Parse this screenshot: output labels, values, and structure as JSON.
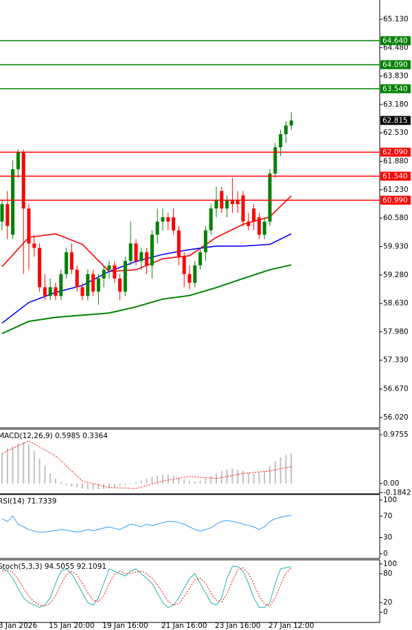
{
  "chart_data": [
    {
      "type": "candlestick",
      "categories": [
        null,
        null,
        "3 Jan 2026",
        null,
        null,
        null,
        null,
        null,
        null,
        null,
        null,
        null,
        null,
        "15 Jan 20:00",
        null,
        null,
        null,
        null,
        null,
        null,
        null,
        null,
        null,
        "19 Jan 16:00",
        null,
        null,
        null,
        null,
        null,
        null,
        null,
        null,
        null,
        null,
        "21 Jan 16:00",
        null,
        null,
        null,
        null,
        null,
        null,
        null,
        null,
        null,
        "23 Jan 16:00",
        null,
        null,
        null,
        null,
        null,
        null,
        null,
        null,
        null,
        "27 Jan 12:00"
      ],
      "open": [
        60.5,
        60.9,
        60.2,
        61.7,
        62.1,
        60.8,
        60.0,
        59.9,
        59.0,
        58.8,
        59.0,
        58.8,
        59.3,
        59.8,
        59.4,
        59.0,
        58.8,
        59.3,
        58.9,
        59.2,
        59.4,
        59.5,
        59.2,
        58.9,
        59.6,
        60.0,
        59.6,
        59.8,
        59.5,
        60.2,
        60.5,
        60.6,
        60.6,
        60.3,
        59.7,
        59.3,
        59.1,
        59.5,
        59.8,
        60.3,
        60.8,
        61.2,
        60.8,
        61.0,
        61.0,
        61.1,
        60.5,
        60.8,
        60.6,
        60.2,
        60.5,
        61.6,
        62.2,
        62.5,
        62.7
      ],
      "high": [
        61.0,
        61.2,
        61.9,
        62.15,
        62.15,
        60.9,
        60.2,
        60.0,
        59.3,
        59.2,
        59.1,
        59.4,
        59.9,
        60.0,
        59.5,
        59.1,
        59.4,
        59.4,
        59.3,
        59.5,
        59.6,
        59.6,
        59.3,
        59.7,
        60.5,
        60.1,
        59.9,
        59.9,
        60.3,
        60.8,
        60.8,
        60.7,
        60.8,
        60.4,
        59.8,
        59.5,
        59.6,
        59.9,
        60.4,
        60.9,
        61.3,
        61.3,
        61.1,
        61.5,
        61.2,
        61.2,
        60.7,
        60.9,
        60.7,
        60.6,
        61.7,
        62.3,
        62.6,
        62.8,
        63.0
      ],
      "low": [
        60.3,
        60.1,
        60.1,
        61.5,
        59.3,
        59.4,
        59.7,
        58.9,
        58.7,
        58.7,
        58.7,
        58.7,
        59.2,
        59.3,
        58.9,
        58.7,
        58.7,
        58.8,
        58.6,
        59.0,
        59.2,
        59.1,
        58.7,
        58.8,
        59.5,
        59.5,
        59.4,
        59.3,
        59.2,
        60.0,
        60.3,
        60.3,
        60.2,
        59.5,
        59.0,
        58.95,
        59.0,
        59.4,
        59.6,
        60.2,
        60.6,
        60.7,
        60.6,
        60.7,
        60.7,
        60.4,
        60.3,
        60.3,
        60.1,
        60.1,
        60.4,
        61.5,
        62.0,
        62.3,
        62.6
      ],
      "close": [
        60.9,
        60.4,
        61.7,
        62.1,
        60.8,
        60.0,
        59.9,
        59.0,
        58.8,
        59.0,
        58.8,
        59.3,
        59.8,
        59.4,
        59.0,
        58.8,
        59.3,
        58.9,
        59.2,
        59.4,
        59.5,
        59.2,
        58.9,
        59.6,
        60.0,
        59.6,
        59.8,
        59.5,
        60.2,
        60.5,
        60.6,
        60.5,
        60.3,
        59.7,
        59.3,
        59.1,
        59.5,
        59.8,
        60.3,
        60.8,
        61.0,
        60.8,
        61.0,
        60.9,
        60.9,
        60.5,
        60.4,
        60.5,
        60.2,
        60.5,
        61.6,
        62.2,
        62.5,
        62.7,
        62.815
      ],
      "up_color": "#008000",
      "down_color": "#ff0000",
      "moving_averages": [
        {
          "color": "#ff0000",
          "x": [
            0,
            5,
            10,
            15,
            20,
            25,
            30,
            35,
            40,
            45,
            50,
            54
          ],
          "values": [
            59.47,
            60.14,
            60.22,
            59.98,
            59.36,
            59.4,
            59.65,
            59.72,
            60.14,
            60.44,
            60.61,
            61.09
          ]
        },
        {
          "color": "#0000ff",
          "x": [
            0,
            5,
            10,
            15,
            20,
            25,
            30,
            35,
            40,
            45,
            50,
            54
          ],
          "values": [
            58.18,
            58.65,
            58.88,
            59.04,
            59.36,
            59.59,
            59.75,
            59.86,
            59.94,
            59.94,
            59.98,
            60.22
          ]
        },
        {
          "color": "#008000",
          "x": [
            0,
            5,
            10,
            15,
            20,
            25,
            30,
            35,
            40,
            45,
            50,
            54
          ],
          "values": [
            57.94,
            58.22,
            58.31,
            58.36,
            58.41,
            58.55,
            58.73,
            58.81,
            58.99,
            59.2,
            59.4,
            59.51
          ]
        }
      ],
      "levels": [
        {
          "value": 64.64,
          "label": "64.640",
          "color": "#008000"
        },
        {
          "value": 64.09,
          "label": "64.090",
          "color": "#008000"
        },
        {
          "value": 63.54,
          "label": "63.540",
          "color": "#008000"
        },
        {
          "value": 62.09,
          "label": "62.090",
          "color": "#ff0000"
        },
        {
          "value": 61.54,
          "label": "61.540",
          "color": "#ff0000"
        },
        {
          "value": 60.99,
          "label": "60.990",
          "color": "#ff0000"
        }
      ],
      "current_price": {
        "value": 62.815,
        "label": "62.815"
      },
      "ylim": [
        55.784,
        65.57
      ],
      "yticks": [
        {
          "value": 65.13,
          "label": "65.130"
        },
        {
          "value": 64.48,
          "label": "64.480"
        },
        {
          "value": 63.83,
          "label": "63.830"
        },
        {
          "value": 63.18,
          "label": "63.180"
        },
        {
          "value": 62.53,
          "label": "62.530"
        },
        {
          "value": 61.88,
          "label": "61.880"
        },
        {
          "value": 61.23,
          "label": "61.230"
        },
        {
          "value": 60.58,
          "label": "60.580"
        },
        {
          "value": 59.93,
          "label": "59.930"
        },
        {
          "value": 59.28,
          "label": "59.280"
        },
        {
          "value": 58.63,
          "label": "58.630"
        },
        {
          "value": 57.98,
          "label": "57.980"
        },
        {
          "value": 57.33,
          "label": "57.330"
        },
        {
          "value": 56.67,
          "label": "56.670"
        },
        {
          "value": 56.02,
          "label": "56.020"
        }
      ]
    },
    {
      "type": "macd",
      "title": "MACD(12,26,9) 0.5985 0.3364",
      "values": [
        0.6,
        0.7,
        0.75,
        0.8,
        0.82,
        0.78,
        0.65,
        0.5,
        0.35,
        0.2,
        0.1,
        0.03,
        -0.03,
        -0.06,
        -0.08,
        -0.1,
        -0.12,
        -0.13,
        -0.12,
        -0.11,
        -0.1,
        -0.08,
        -0.05,
        -0.03,
        0.0,
        0.03,
        0.06,
        0.1,
        0.13,
        0.15,
        0.17,
        0.18,
        0.16,
        0.12,
        0.08,
        0.05,
        0.04,
        0.06,
        0.1,
        0.15,
        0.2,
        0.25,
        0.28,
        0.3,
        0.28,
        0.25,
        0.22,
        0.2,
        0.22,
        0.25,
        0.35,
        0.45,
        0.52,
        0.57,
        0.5985
      ],
      "color": "#c0c0c0",
      "signal": {
        "color": "#ff0000",
        "x": [
          0,
          5,
          10,
          15,
          20,
          25,
          30,
          35,
          40,
          45,
          50,
          54
        ],
        "values": [
          0.6,
          0.85,
          0.55,
          0.05,
          -0.08,
          -0.1,
          0.05,
          0.14,
          0.1,
          0.2,
          0.25,
          0.3364
        ]
      },
      "ylim": [
        -0.206,
        1.071
      ],
      "yticks": [
        0.9755,
        {
          "value": 0,
          "label": "0.00"
        },
        -0.1842
      ]
    },
    {
      "type": "line",
      "title": "RSI(14) 71.7339",
      "series": [
        {
          "color": "#3399ff",
          "style": "solid",
          "values": [
            65,
            60,
            70,
            55,
            50,
            45,
            42,
            40,
            40,
            42,
            43,
            45,
            44,
            42,
            40,
            42,
            45,
            43,
            45,
            48,
            50,
            47,
            45,
            50,
            55,
            53,
            50,
            55,
            52,
            55,
            58,
            60,
            60,
            58,
            55,
            50,
            45,
            42,
            45,
            48,
            55,
            60,
            62,
            60,
            58,
            55,
            53,
            50,
            45,
            50,
            60,
            65,
            68,
            70,
            71.7339
          ]
        }
      ],
      "ylim": [
        -9,
        109
      ],
      "yticks": [
        100,
        70,
        30,
        0
      ]
    },
    {
      "type": "line",
      "title": "Stoch(5,3,3) 94.5055 92.1091",
      "series": [
        {
          "color": "#20b2aa",
          "style": "solid",
          "values": [
            90,
            85,
            70,
            50,
            30,
            20,
            15,
            10,
            15,
            30,
            60,
            85,
            90,
            80,
            60,
            40,
            20,
            15,
            30,
            60,
            90,
            85,
            80,
            75,
            85,
            90,
            80,
            70,
            60,
            40,
            20,
            10,
            15,
            30,
            50,
            70,
            80,
            60,
            40,
            20,
            15,
            30,
            70,
            95,
            95,
            85,
            60,
            30,
            10,
            10,
            20,
            60,
            90,
            92,
            94.5055
          ]
        },
        {
          "color": "#ff0000",
          "style": "dotted",
          "values": [
            85,
            88,
            82,
            68,
            50,
            33,
            22,
            15,
            13,
            18,
            35,
            58,
            78,
            85,
            77,
            60,
            40,
            25,
            22,
            35,
            60,
            78,
            85,
            80,
            80,
            83,
            85,
            80,
            70,
            57,
            40,
            23,
            15,
            18,
            32,
            50,
            67,
            70,
            60,
            40,
            25,
            22,
            38,
            65,
            87,
            92,
            80,
            58,
            33,
            17,
            13,
            30,
            57,
            81,
            92.1091
          ]
        }
      ],
      "ylim": [
        -21,
        107
      ],
      "yticks": [
        100,
        80,
        20,
        0
      ]
    }
  ]
}
